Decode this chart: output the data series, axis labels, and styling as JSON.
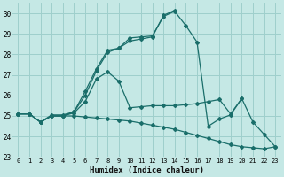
{
  "xlabel": "Humidex (Indice chaleur)",
  "xlim": [
    -0.5,
    23.5
  ],
  "ylim": [
    23,
    30.5
  ],
  "yticks": [
    23,
    24,
    25,
    26,
    27,
    28,
    29,
    30
  ],
  "xticks": [
    0,
    1,
    2,
    3,
    4,
    5,
    6,
    7,
    8,
    9,
    10,
    11,
    12,
    13,
    14,
    15,
    16,
    17,
    18,
    19,
    20,
    21,
    22,
    23
  ],
  "bg_color": "#c5e8e5",
  "grid_color": "#9ecfcc",
  "line_color": "#1a6e6a",
  "lines": [
    {
      "x": [
        0,
        1,
        2,
        3,
        4,
        5,
        6,
        7,
        8,
        9,
        10,
        11,
        12,
        13,
        14,
        15,
        16,
        17,
        18,
        19,
        20,
        21,
        22,
        23
      ],
      "y": [
        25.1,
        25.1,
        24.7,
        25.0,
        25.0,
        25.2,
        26.0,
        27.2,
        28.1,
        28.3,
        28.8,
        28.85,
        28.9,
        29.85,
        30.1,
        29.4,
        28.6,
        24.5,
        24.85,
        25.05,
        25.85,
        24.7,
        24.1,
        23.5
      ]
    },
    {
      "x": [
        0,
        1,
        2,
        3,
        4,
        5,
        6,
        7,
        8,
        9,
        10,
        11,
        12,
        13,
        14,
        15,
        16,
        17,
        18,
        19,
        20
      ],
      "y": [
        25.1,
        25.1,
        24.7,
        25.0,
        25.0,
        25.15,
        25.7,
        26.8,
        27.15,
        26.7,
        25.4,
        25.45,
        25.5,
        25.5,
        25.5,
        25.55,
        25.6,
        25.7,
        25.8,
        25.1,
        25.85
      ]
    },
    {
      "x": [
        0,
        1,
        2,
        3,
        4,
        5,
        6,
        7,
        8,
        9,
        10,
        11,
        12,
        13,
        14,
        15,
        16,
        17,
        18,
        19,
        20,
        21,
        22,
        23
      ],
      "y": [
        25.1,
        25.1,
        24.7,
        25.0,
        25.0,
        25.0,
        24.95,
        24.9,
        24.85,
        24.8,
        24.75,
        24.65,
        24.55,
        24.45,
        24.35,
        24.2,
        24.05,
        23.9,
        23.75,
        23.6,
        23.5,
        23.45,
        23.4,
        23.5
      ]
    },
    {
      "x": [
        0,
        1,
        2,
        3,
        4,
        5,
        6,
        7,
        8,
        9,
        10,
        11,
        12,
        13,
        14
      ],
      "y": [
        25.1,
        25.1,
        24.7,
        25.05,
        25.05,
        25.2,
        26.2,
        27.3,
        28.2,
        28.3,
        28.65,
        28.75,
        28.85,
        29.9,
        30.15
      ]
    }
  ]
}
